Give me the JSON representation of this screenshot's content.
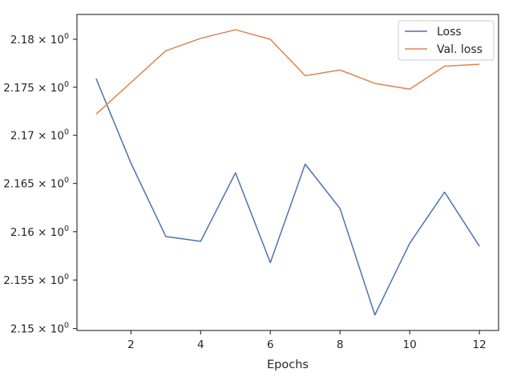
{
  "chart_data": {
    "type": "line",
    "title": "",
    "xlabel": "Epochs",
    "ylabel": "",
    "x": [
      1,
      2,
      3,
      4,
      5,
      6,
      7,
      8,
      9,
      10,
      11,
      12
    ],
    "series": [
      {
        "name": "Loss",
        "color": "#4c72b0",
        "values": [
          2.1759,
          2.1671,
          2.1595,
          2.159,
          2.1661,
          2.1568,
          2.167,
          2.1624,
          2.1514,
          2.1588,
          2.1641,
          2.1585
        ]
      },
      {
        "name": "Val. loss",
        "color": "#dd8452",
        "values": [
          2.1722,
          2.1755,
          2.1788,
          2.1801,
          2.181,
          2.18,
          2.1762,
          2.1768,
          2.1754,
          2.1748,
          2.1772,
          2.1774
        ]
      }
    ],
    "xlim": [
      0.45,
      12.55
    ],
    "ylim": [
      2.1498,
      2.1826
    ],
    "xticks": [
      2,
      4,
      6,
      8,
      10,
      12
    ],
    "yticks": [
      2.15,
      2.155,
      2.16,
      2.165,
      2.17,
      2.175,
      2.18
    ],
    "yticklabels": [
      "2.15",
      "2.155",
      "2.16",
      "2.165",
      "2.17",
      "2.175",
      "2.18"
    ],
    "ytick_suffix": "× 10",
    "ytick_exponent": "0",
    "y_scale": "log",
    "grid": false,
    "legend_position": "top-right"
  }
}
